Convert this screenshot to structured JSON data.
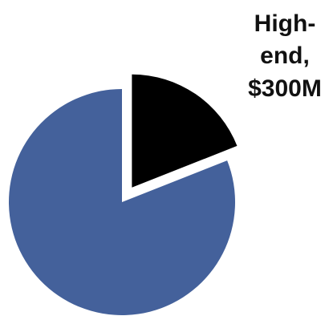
{
  "chart_data": {
    "type": "pie",
    "slices": [
      {
        "label": "",
        "value": 81,
        "color": "#44619b",
        "exploded": false
      },
      {
        "label": "High-end, $300M",
        "value": 19,
        "color": "#000000",
        "exploded": true
      }
    ],
    "slice_labels": {
      "high_end": [
        "High-",
        "end,",
        "$300M"
      ]
    },
    "legend": "none"
  }
}
